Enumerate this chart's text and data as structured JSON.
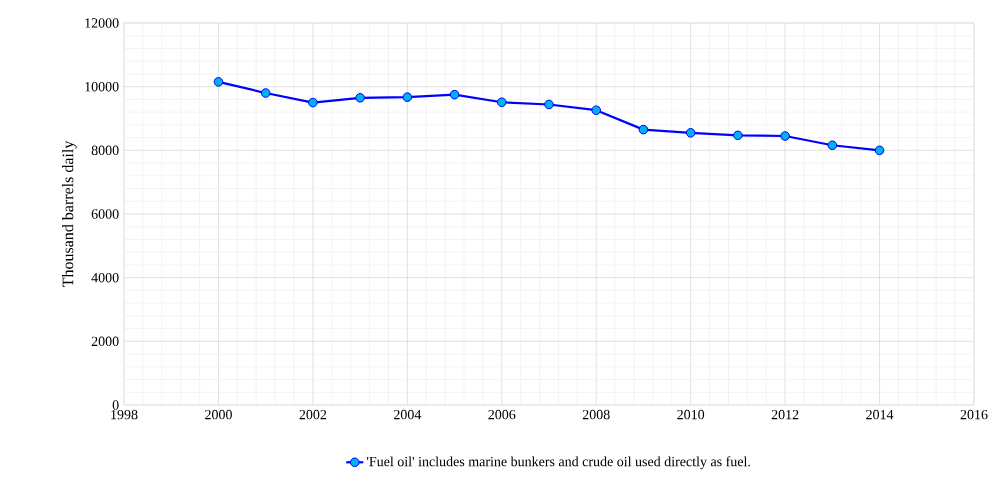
{
  "chart_data": {
    "type": "line",
    "ylabel": "Thousand barrels daily",
    "x": [
      2000,
      2001,
      2002,
      2003,
      2004,
      2005,
      2006,
      2007,
      2008,
      2009,
      2010,
      2011,
      2012,
      2013,
      2014
    ],
    "series": [
      {
        "name": "'Fuel oil' includes marine bunkers and crude oil used directly as fuel.",
        "color": "#0000ff",
        "values": [
          10150,
          9800,
          9500,
          9650,
          9670,
          9750,
          9510,
          9440,
          9260,
          8650,
          8550,
          8470,
          8450,
          8160,
          8000
        ]
      }
    ],
    "xlim": [
      1998,
      2016
    ],
    "xticks": [
      1998,
      2000,
      2002,
      2004,
      2006,
      2008,
      2010,
      2012,
      2014,
      2016
    ],
    "ylim": [
      0,
      12000
    ],
    "yticks": [
      0,
      2000,
      4000,
      6000,
      8000,
      10000,
      12000
    ],
    "grid": true,
    "legend": "bottom",
    "marker": "circle",
    "line_style": "solid"
  }
}
